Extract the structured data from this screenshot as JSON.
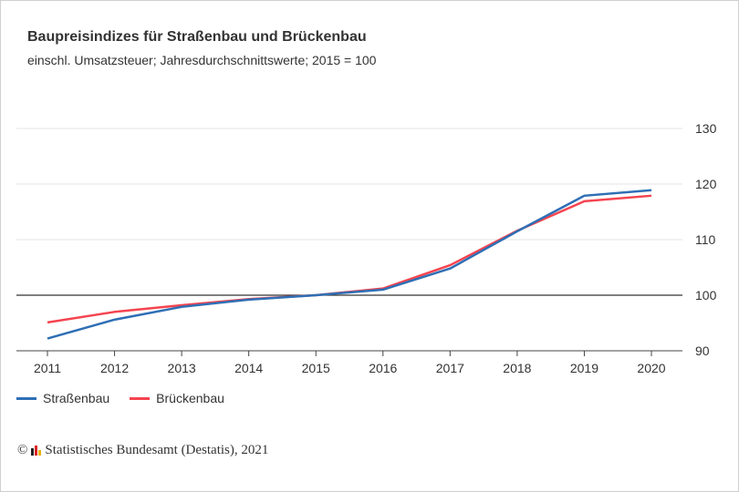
{
  "chart_data": {
    "type": "line",
    "title": "Baupreisindizes für Straßenbau und Brückenbau",
    "subtitle": "einschl. Umsatzsteuer; Jahresdurchschnittswerte; 2015 = 100",
    "x": [
      "2011",
      "2012",
      "2013",
      "2014",
      "2015",
      "2016",
      "2017",
      "2018",
      "2019",
      "2020"
    ],
    "series": [
      {
        "name": "Straßenbau",
        "color": "#2e6fb5",
        "values": [
          92.2,
          95.6,
          97.9,
          99.2,
          100.0,
          101.0,
          104.8,
          111.5,
          117.9,
          118.9
        ]
      },
      {
        "name": "Brückenbau",
        "color": "#f5444f",
        "values": [
          95.1,
          97.0,
          98.2,
          99.3,
          100.0,
          101.2,
          105.4,
          111.6,
          116.9,
          117.9
        ]
      }
    ],
    "ylim": [
      90,
      130
    ],
    "yticks": [
      "90",
      "100",
      "110",
      "120",
      "130"
    ],
    "reference_line": 100,
    "y_axis_position": "right",
    "grid": true,
    "legend_position": "bottom-left"
  },
  "source": "Statistisches Bundesamt (Destatis), 2021",
  "copyright_symbol": "©"
}
